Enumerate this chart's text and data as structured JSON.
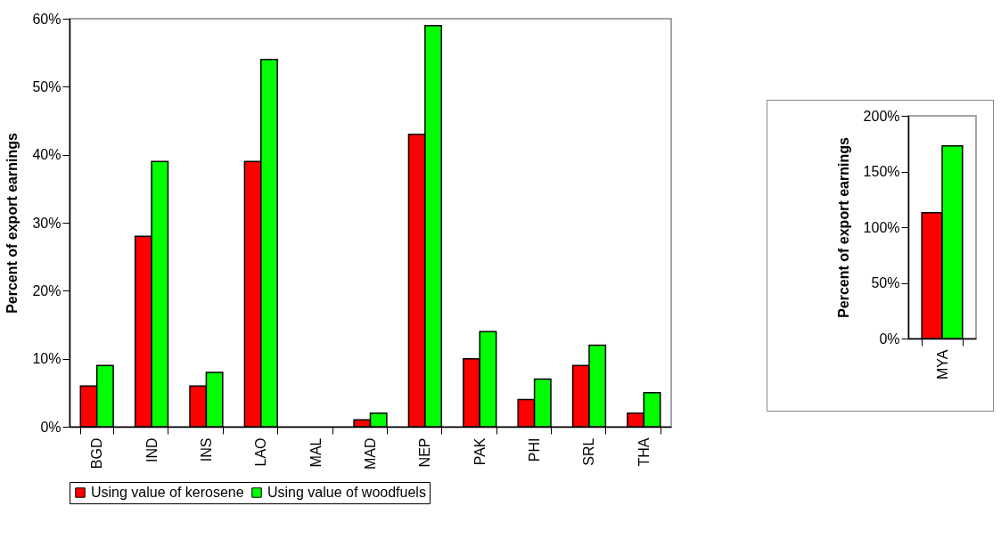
{
  "chart_data": [
    {
      "type": "bar",
      "ylabel": "Percent of export earnings",
      "categories": [
        "BGD",
        "IND",
        "INS",
        "LAO",
        "MAL",
        "MAD",
        "NEP",
        "PAK",
        "PHI",
        "SRL",
        "THA"
      ],
      "series": [
        {
          "name": "Using value of kerosene",
          "color": "#ff0000",
          "values": [
            6,
            28,
            6,
            39,
            null,
            1,
            43,
            10,
            4,
            9,
            2
          ]
        },
        {
          "name": "Using value of woodfuels",
          "color": "#00ff00",
          "values": [
            9,
            39,
            8,
            54,
            null,
            2,
            59,
            14,
            7,
            12,
            5
          ]
        }
      ],
      "ylim": [
        0,
        60
      ],
      "yticks": [
        {
          "value": 0,
          "label": "0%"
        },
        {
          "value": 10,
          "label": "10%"
        },
        {
          "value": 20,
          "label": "20%"
        },
        {
          "value": 30,
          "label": "30%"
        },
        {
          "value": 40,
          "label": "40%"
        },
        {
          "value": 50,
          "label": "50%"
        },
        {
          "value": 60,
          "label": "60%"
        }
      ],
      "grid": false,
      "legend": "bottom"
    },
    {
      "type": "bar",
      "ylabel": "Percent of export earnings",
      "categories": [
        "MYA"
      ],
      "series": [
        {
          "color": "#ff0000",
          "values": [
            113
          ]
        },
        {
          "color": "#00ff00",
          "values": [
            173
          ]
        }
      ],
      "ylim": [
        0,
        200
      ],
      "yticks": [
        {
          "value": 0,
          "label": "0%"
        },
        {
          "value": 50,
          "label": "50%"
        },
        {
          "value": 100,
          "label": "100%"
        },
        {
          "value": 150,
          "label": "150%"
        },
        {
          "value": 200,
          "label": "200%"
        }
      ],
      "grid": false
    }
  ]
}
